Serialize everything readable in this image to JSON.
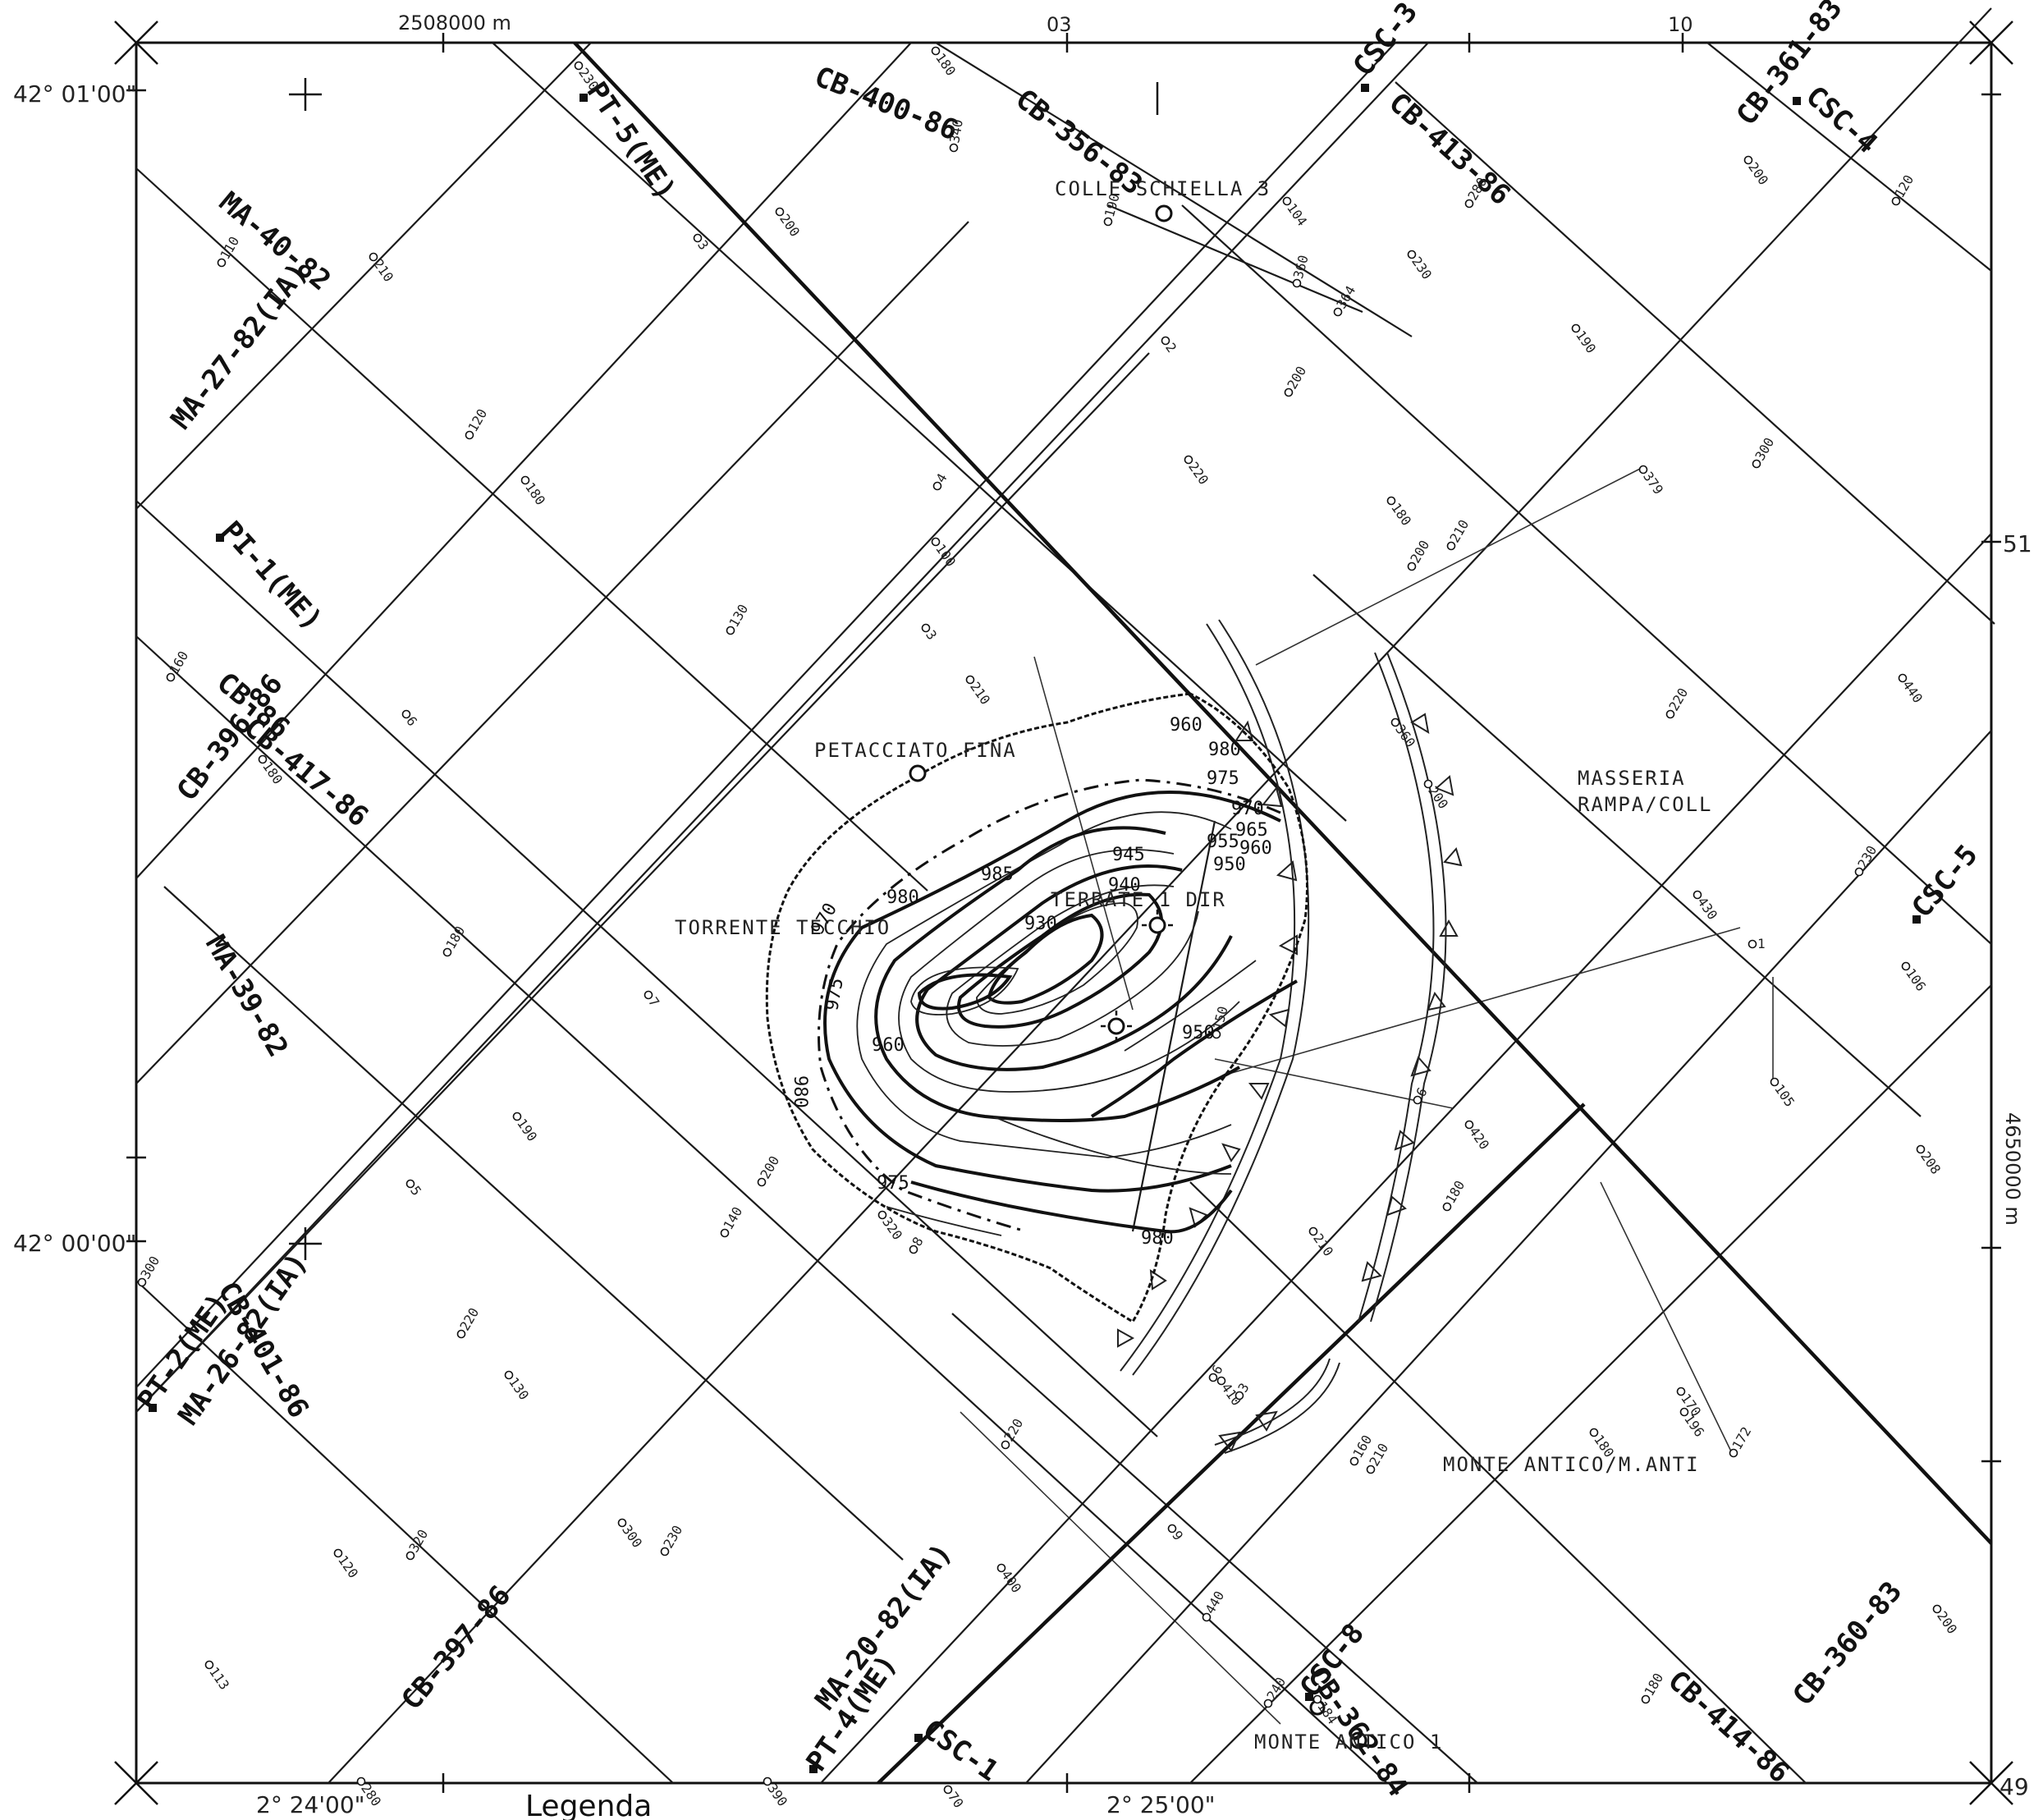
{
  "map": {
    "legend_heading": "Legenda",
    "corner_number": "49",
    "grid": {
      "easting_top": "2508000 m",
      "easting_03": "03",
      "easting_10": "10",
      "northing_51": "51",
      "northing_main": "4650000 m",
      "lat_top": "42° 01'00\"",
      "lat_bottom": "42° 00'00\"",
      "lon_left": "2° 24'00\"",
      "lon_right": "2° 25'00\""
    },
    "seismic_lines": [
      "CB-400-86",
      "CB-356-83",
      "CSC-3",
      "CB-413-86",
      "CB-361-83",
      "CSC-4",
      "PT-5(ME)",
      "MA-40-82",
      "MA-27-82(IA)",
      "PI-1(ME)",
      "CB-86",
      "CB-396-86",
      "CB-417-86",
      "MA-39-82",
      "PT-2(ME)",
      "CB-401-86",
      "MA-26-82(IA)",
      "CB-397-86",
      "MA-20-82(IA)",
      "PT-4(ME)",
      "CSC-1",
      "CSC-8",
      "CB-362-84",
      "CB-414-86",
      "CB-360-83",
      "CSC-5"
    ],
    "places": [
      "COLLE SCHIELLA 3",
      "PETACCIATO FINA",
      "TORRENTE TECCHIO",
      "TERRATE 1 DIR",
      "MASSERIA",
      "RAMPA/COLL",
      "MONTE ANTICO/M.ANTI",
      "MONTE ANTICO 1"
    ],
    "contour_labels": [
      "980",
      "975",
      "970",
      "965",
      "960",
      "955",
      "950",
      "945",
      "940",
      "930",
      "985",
      "980",
      "975",
      "970",
      "960",
      "950",
      "980",
      "975",
      "980",
      "960"
    ],
    "shotpoints": [
      "230",
      "180",
      "340",
      "200",
      "3",
      "104",
      "360",
      "364",
      "190",
      "2",
      "280",
      "230",
      "190",
      "200",
      "120",
      "200",
      "300",
      "110",
      "210",
      "120",
      "180",
      "220",
      "4",
      "100",
      "180",
      "379",
      "210",
      "200",
      "130",
      "3",
      "210",
      "440",
      "160",
      "180",
      "6",
      "360",
      "220",
      "200",
      "180",
      "430",
      "230",
      "106",
      "1",
      "105",
      "7",
      "190",
      "210",
      "5",
      "200",
      "140",
      "320",
      "8",
      "420",
      "208",
      "180",
      "6",
      "300",
      "220",
      "180",
      "130",
      "6",
      "410",
      "3",
      "170",
      "172",
      "196",
      "210",
      "160",
      "220",
      "9",
      "400",
      "230",
      "300",
      "320",
      "120",
      "113",
      "440",
      "240",
      "184",
      "180",
      "200",
      "280",
      "390",
      "70",
      "150"
    ],
    "colors": {
      "ink": "#111111",
      "paper": "#ffffff"
    }
  }
}
